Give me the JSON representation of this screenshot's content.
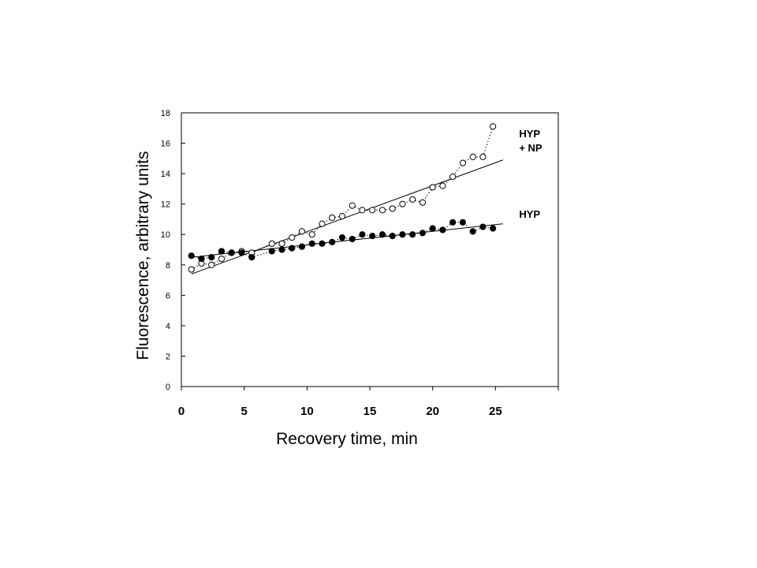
{
  "chart_data": {
    "type": "scatter",
    "xlabel": "Recovery time, min",
    "ylabel": "Fluorescence, arbitrary units",
    "xlim": [
      0,
      30
    ],
    "ylim": [
      0,
      18
    ],
    "x_ticks": [
      0,
      5,
      10,
      15,
      20,
      25
    ],
    "y_ticks": [
      0,
      2,
      4,
      6,
      8,
      10,
      12,
      14,
      16,
      18
    ],
    "grid": false,
    "legend": "none",
    "series": [
      {
        "name": "HYP + NP",
        "label_lines": [
          "HYP",
          "+ NP"
        ],
        "marker": "open-circle",
        "connector": "dotted",
        "points": [
          [
            0.8,
            7.7
          ],
          [
            1.6,
            8.1
          ],
          [
            2.4,
            8.0
          ],
          [
            3.2,
            8.4
          ],
          [
            4.0,
            8.8
          ],
          [
            4.8,
            8.9
          ],
          [
            5.6,
            8.8
          ],
          [
            7.2,
            9.4
          ],
          [
            8.0,
            9.4
          ],
          [
            8.8,
            9.8
          ],
          [
            9.6,
            10.2
          ],
          [
            10.4,
            10.0
          ],
          [
            11.2,
            10.7
          ],
          [
            12.0,
            11.1
          ],
          [
            12.8,
            11.2
          ],
          [
            13.6,
            11.9
          ],
          [
            14.4,
            11.6
          ],
          [
            15.2,
            11.6
          ],
          [
            16.0,
            11.6
          ],
          [
            16.8,
            11.7
          ],
          [
            17.6,
            12.0
          ],
          [
            18.4,
            12.3
          ],
          [
            19.2,
            12.1
          ],
          [
            20.0,
            13.1
          ],
          [
            20.8,
            13.2
          ],
          [
            21.6,
            13.8
          ],
          [
            22.4,
            14.7
          ],
          [
            23.2,
            15.1
          ],
          [
            24.0,
            15.1
          ],
          [
            24.8,
            17.1
          ]
        ],
        "fit": [
          [
            0.8,
            7.4
          ],
          [
            25.6,
            14.9
          ]
        ]
      },
      {
        "name": "HYP",
        "label_lines": [
          "HYP"
        ],
        "marker": "filled-circle",
        "connector": "dotted",
        "points": [
          [
            0.8,
            8.6
          ],
          [
            1.6,
            8.4
          ],
          [
            2.4,
            8.5
          ],
          [
            3.2,
            8.9
          ],
          [
            4.0,
            8.8
          ],
          [
            4.8,
            8.8
          ],
          [
            5.6,
            8.5
          ],
          [
            7.2,
            8.9
          ],
          [
            8.0,
            9.0
          ],
          [
            8.8,
            9.1
          ],
          [
            9.6,
            9.2
          ],
          [
            10.4,
            9.4
          ],
          [
            11.2,
            9.4
          ],
          [
            12.0,
            9.5
          ],
          [
            12.8,
            9.8
          ],
          [
            13.6,
            9.7
          ],
          [
            14.4,
            10.0
          ],
          [
            15.2,
            9.9
          ],
          [
            16.0,
            10.0
          ],
          [
            16.8,
            9.9
          ],
          [
            17.6,
            10.0
          ],
          [
            18.4,
            10.0
          ],
          [
            19.2,
            10.1
          ],
          [
            20.0,
            10.4
          ],
          [
            20.8,
            10.3
          ],
          [
            21.6,
            10.8
          ],
          [
            22.4,
            10.8
          ],
          [
            23.2,
            10.2
          ],
          [
            24.0,
            10.5
          ],
          [
            24.8,
            10.4
          ]
        ],
        "fit": [
          [
            0.8,
            8.5
          ],
          [
            25.6,
            10.7
          ]
        ]
      }
    ]
  }
}
